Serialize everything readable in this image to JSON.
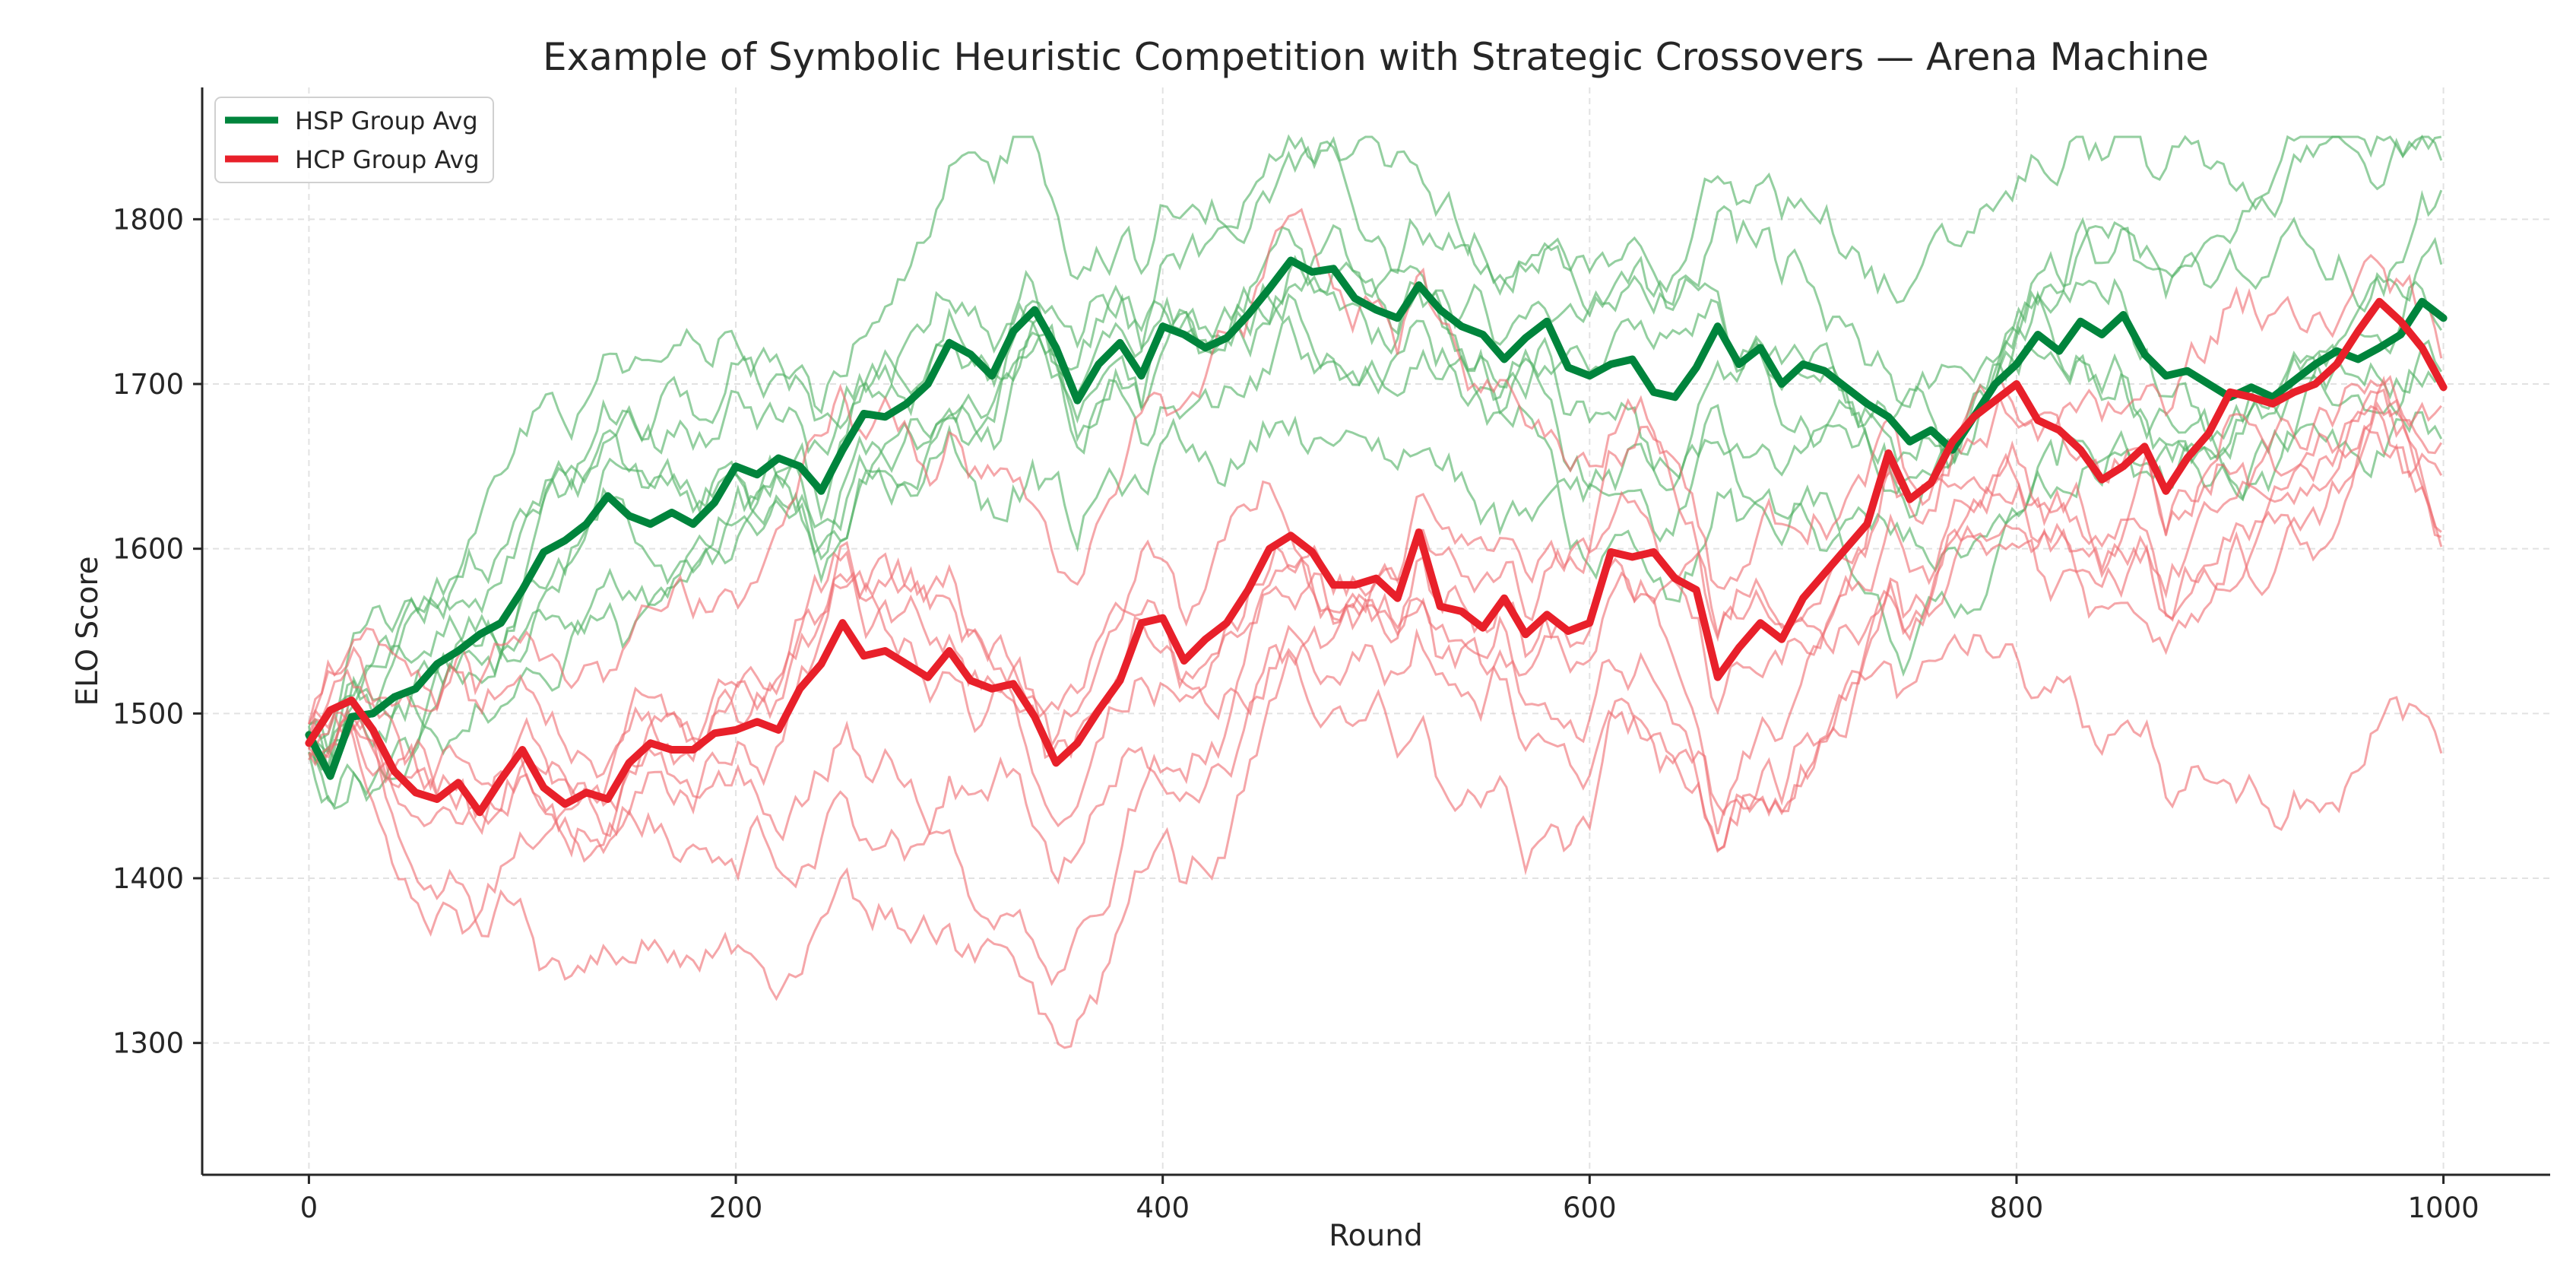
{
  "chart_data": {
    "type": "line",
    "title": "Example of Symbolic Heuristic Competition with Strategic Crossovers — Arena Machine",
    "xlabel": "Round",
    "ylabel": "ELO Score",
    "xlim": [
      -50,
      1050
    ],
    "ylim": [
      1220,
      1880
    ],
    "x_ticks": [
      0,
      200,
      400,
      600,
      800,
      1000
    ],
    "y_ticks": [
      1300,
      1400,
      1500,
      1600,
      1700,
      1800
    ],
    "x_tick_labels": [
      "0",
      "200",
      "400",
      "600",
      "800",
      "1000"
    ],
    "y_tick_labels": [
      "1300",
      "1400",
      "1500",
      "1600",
      "1700",
      "1800"
    ],
    "grid": true,
    "legend_position": "top-left",
    "colors": {
      "hsp": "#00843c",
      "hcp": "#e8202a",
      "hsp_light": "#4caf60",
      "hcp_light": "#ee6a6f"
    },
    "series": [
      {
        "name": "HSP Group Avg",
        "color": "#00843c",
        "x": [
          0,
          10,
          20,
          30,
          40,
          50,
          60,
          70,
          80,
          90,
          100,
          110,
          120,
          130,
          140,
          150,
          160,
          170,
          180,
          190,
          200,
          210,
          220,
          230,
          240,
          250,
          260,
          270,
          280,
          290,
          300,
          310,
          320,
          330,
          340,
          350,
          360,
          370,
          380,
          390,
          400,
          410,
          420,
          430,
          440,
          450,
          460,
          470,
          480,
          490,
          500,
          510,
          520,
          530,
          540,
          550,
          560,
          570,
          580,
          590,
          600,
          610,
          620,
          630,
          640,
          650,
          660,
          670,
          680,
          690,
          700,
          710,
          720,
          730,
          740,
          750,
          760,
          770,
          780,
          790,
          800,
          810,
          820,
          830,
          840,
          850,
          860,
          870,
          880,
          890,
          900,
          910,
          920,
          930,
          940,
          950,
          960,
          970,
          980,
          990,
          1000
        ],
        "values": [
          1487,
          1462,
          1498,
          1500,
          1510,
          1515,
          1530,
          1538,
          1548,
          1555,
          1575,
          1598,
          1605,
          1615,
          1632,
          1620,
          1615,
          1622,
          1615,
          1628,
          1650,
          1645,
          1655,
          1650,
          1635,
          1660,
          1682,
          1680,
          1688,
          1700,
          1725,
          1718,
          1705,
          1732,
          1745,
          1722,
          1690,
          1712,
          1725,
          1705,
          1735,
          1730,
          1722,
          1728,
          1742,
          1758,
          1775,
          1768,
          1770,
          1752,
          1745,
          1740,
          1760,
          1745,
          1735,
          1730,
          1715,
          1728,
          1738,
          1710,
          1705,
          1712,
          1715,
          1695,
          1692,
          1710,
          1735,
          1712,
          1722,
          1700,
          1712,
          1708,
          1698,
          1688,
          1680,
          1665,
          1672,
          1660,
          1680,
          1700,
          1712,
          1730,
          1720,
          1738,
          1730,
          1742,
          1718,
          1705,
          1708,
          1700,
          1692,
          1698,
          1692,
          1702,
          1712,
          1720,
          1715,
          1722,
          1730,
          1750,
          1740
        ]
      },
      {
        "name": "HCP Group Avg",
        "color": "#e8202a",
        "x": [
          0,
          10,
          20,
          30,
          40,
          50,
          60,
          70,
          80,
          90,
          100,
          110,
          120,
          130,
          140,
          150,
          160,
          170,
          180,
          190,
          200,
          210,
          220,
          230,
          240,
          250,
          260,
          270,
          280,
          290,
          300,
          310,
          320,
          330,
          340,
          350,
          360,
          370,
          380,
          390,
          400,
          410,
          420,
          430,
          440,
          450,
          460,
          470,
          480,
          490,
          500,
          510,
          520,
          530,
          540,
          550,
          560,
          570,
          580,
          590,
          600,
          610,
          620,
          630,
          640,
          650,
          660,
          670,
          680,
          690,
          700,
          710,
          720,
          730,
          740,
          750,
          760,
          770,
          780,
          790,
          800,
          810,
          820,
          830,
          840,
          850,
          860,
          870,
          880,
          890,
          900,
          910,
          920,
          930,
          940,
          950,
          960,
          970,
          980,
          990,
          1000
        ],
        "values": [
          1482,
          1502,
          1508,
          1490,
          1465,
          1452,
          1448,
          1458,
          1440,
          1460,
          1478,
          1455,
          1445,
          1452,
          1448,
          1470,
          1482,
          1478,
          1478,
          1488,
          1490,
          1495,
          1490,
          1515,
          1530,
          1555,
          1535,
          1538,
          1530,
          1522,
          1538,
          1520,
          1515,
          1518,
          1498,
          1470,
          1482,
          1502,
          1520,
          1555,
          1558,
          1532,
          1545,
          1555,
          1575,
          1600,
          1608,
          1598,
          1578,
          1578,
          1582,
          1570,
          1610,
          1565,
          1562,
          1552,
          1570,
          1548,
          1560,
          1550,
          1555,
          1598,
          1595,
          1598,
          1582,
          1575,
          1522,
          1540,
          1555,
          1545,
          1570,
          1585,
          1600,
          1615,
          1658,
          1630,
          1640,
          1665,
          1680,
          1690,
          1700,
          1678,
          1672,
          1660,
          1642,
          1650,
          1662,
          1635,
          1655,
          1670,
          1695,
          1692,
          1688,
          1695,
          1700,
          1712,
          1732,
          1750,
          1738,
          1722,
          1698
        ]
      }
    ]
  }
}
